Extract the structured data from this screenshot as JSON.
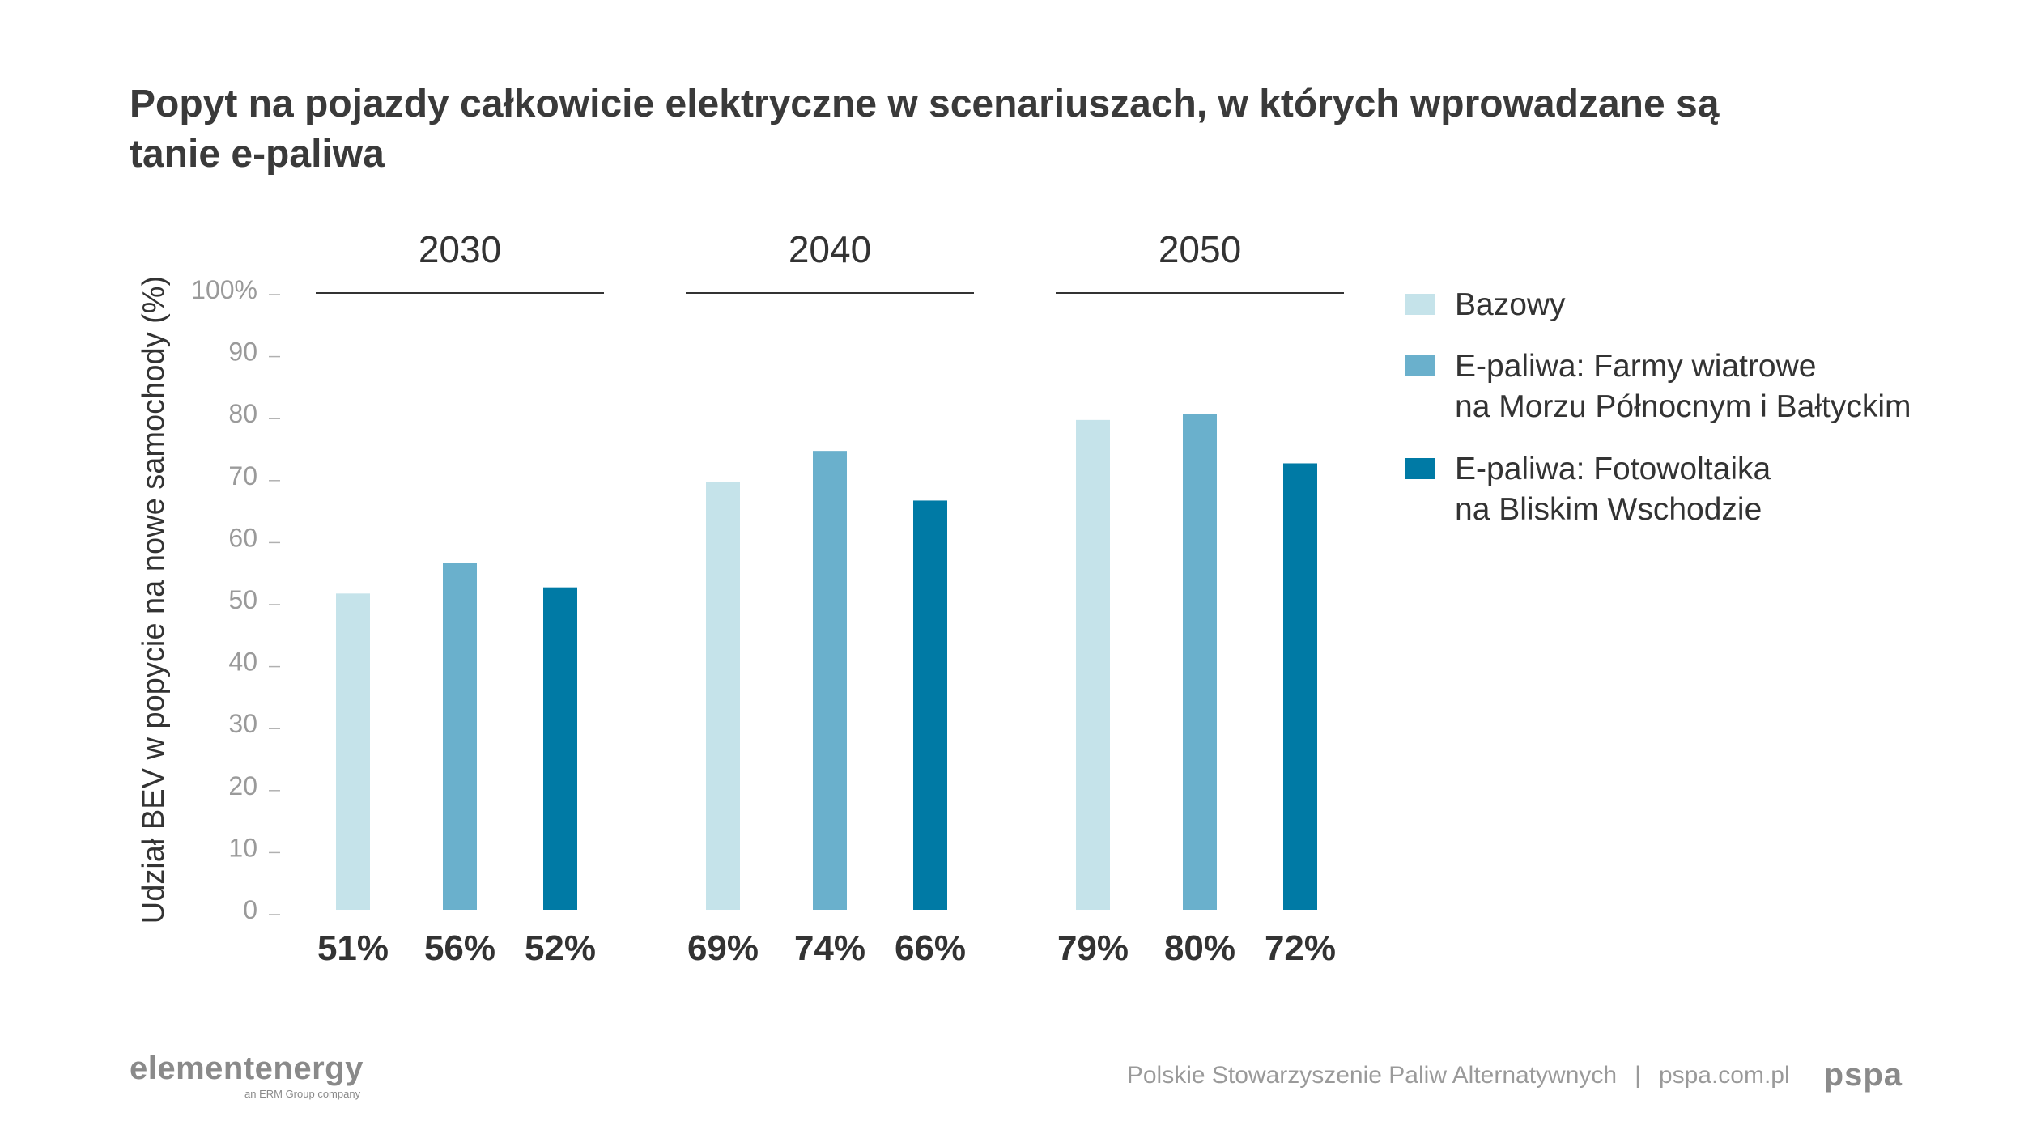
{
  "title": "Popyt na pojazdy całkowicie elektryczne w scenariuszach, w których wprowadzane są tanie e-paliwa",
  "chart_data": {
    "type": "bar",
    "title": "Popyt na pojazdy całkowicie elektryczne w scenariuszach, w których wprowadzane są tanie e-paliwa",
    "xlabel": "",
    "ylabel": "Udział BEV w popycie na nowe samochody (%)",
    "ylim": [
      0,
      100
    ],
    "y_ticks": [
      0,
      10,
      20,
      30,
      40,
      50,
      60,
      70,
      80,
      90,
      100
    ],
    "y_tick_labels": [
      "0",
      "10",
      "20",
      "30",
      "40",
      "50",
      "60",
      "70",
      "80",
      "90",
      "100%"
    ],
    "categories": [
      "2030",
      "2040",
      "2050"
    ],
    "series": [
      {
        "name": "Bazowy",
        "color": "#c5e3ea",
        "values": [
          51,
          69,
          79
        ],
        "labels": [
          "51%",
          "69%",
          "79%"
        ]
      },
      {
        "name": "E-paliwa: Farmy wiatrowe na Morzu Północnym i Bałtyckim",
        "color": "#6ab0cc",
        "values": [
          56,
          74,
          80
        ],
        "labels": [
          "56%",
          "74%",
          "80%"
        ]
      },
      {
        "name": "E-paliwa: Fotowoltaika na Bliskim Wschodzie",
        "color": "#007aa5",
        "values": [
          52,
          66,
          72
        ],
        "labels": [
          "52%",
          "66%",
          "72%"
        ]
      }
    ],
    "legend": {
      "position": "right",
      "items": [
        {
          "line1": "Bazowy",
          "line2": "",
          "color": "#c5e3ea"
        },
        {
          "line1": "E-paliwa: Farmy wiatrowe",
          "line2": "na Morzu Północnym i Bałtyckim",
          "color": "#6ab0cc"
        },
        {
          "line1": "E-paliwa: Fotowoltaika",
          "line2": "na Bliskim Wschodzie",
          "color": "#007aa5"
        }
      ]
    },
    "grid": false
  },
  "footer": {
    "logo_text": "elementenergy",
    "logo_subtext": "an ERM Group company",
    "organization": "Polskie Stowarzyszenie Paliw Alternatywnych",
    "separator": "|",
    "website": "pspa.com.pl",
    "pspa_logo": "pspa"
  }
}
